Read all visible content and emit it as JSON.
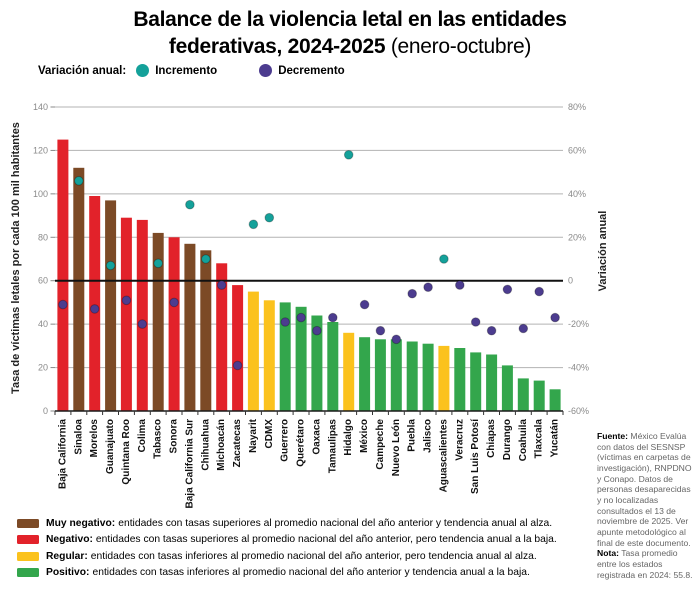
{
  "header": {
    "title_line1": "Balance de la violencia letal en las entidades",
    "title_line2_bold": "federativas, 2024-2025",
    "title_line2_light": " (enero-octubre)"
  },
  "top_legend": {
    "label": "Variación anual:",
    "items": [
      {
        "name": "Incremento",
        "key": "incremento"
      },
      {
        "name": "Decremento",
        "key": "decremento"
      }
    ]
  },
  "chart_data": {
    "type": "bar+scatter",
    "title": "Balance de la violencia letal en las entidades federativas, 2024-2025 (enero-octubre)",
    "left_axis": {
      "label": "Tasa de víctimas letales por cada 100 mil habitantes",
      "ticks": [
        0,
        20,
        40,
        60,
        80,
        100,
        120,
        140
      ],
      "range": [
        0,
        140
      ]
    },
    "right_axis": {
      "label": "Variación anual",
      "ticks": [
        {
          "value": 80,
          "label": "80%"
        },
        {
          "value": 60,
          "label": "60%"
        },
        {
          "value": 40,
          "label": "40%"
        },
        {
          "value": 20,
          "label": "20%"
        },
        {
          "value": 0,
          "label": "0"
        },
        {
          "value": -20,
          "label": "-20%"
        },
        {
          "value": -40,
          "label": "-40%"
        },
        {
          "value": -60,
          "label": "-60%"
        }
      ],
      "range": [
        -60,
        80
      ]
    },
    "zero_reference": {
      "right_value": 0,
      "left_value": 60
    },
    "grid": true,
    "status_colors": {
      "muy_negativo": "#7C4A26",
      "negativo": "#E2222A",
      "regular": "#FBC21D",
      "positivo": "#33A64C"
    },
    "dot_colors": {
      "incremento": "#14A19A",
      "decremento": "#4C3C8F"
    },
    "rows": [
      {
        "state": "Baja California",
        "tasa": 125,
        "status": "negativo",
        "variacion": -11,
        "direccion": "decremento"
      },
      {
        "state": "Sinaloa",
        "tasa": 112,
        "status": "muy_negativo",
        "variacion": 46,
        "direccion": "incremento"
      },
      {
        "state": "Morelos",
        "tasa": 99,
        "status": "negativo",
        "variacion": -13,
        "direccion": "decremento"
      },
      {
        "state": "Guanajuato",
        "tasa": 97,
        "status": "muy_negativo",
        "variacion": 7,
        "direccion": "incremento"
      },
      {
        "state": "Quintana Roo",
        "tasa": 89,
        "status": "negativo",
        "variacion": -9,
        "direccion": "decremento"
      },
      {
        "state": "Colima",
        "tasa": 88,
        "status": "negativo",
        "variacion": -20,
        "direccion": "decremento"
      },
      {
        "state": "Tabasco",
        "tasa": 82,
        "status": "muy_negativo",
        "variacion": 8,
        "direccion": "incremento"
      },
      {
        "state": "Sonora",
        "tasa": 80,
        "status": "negativo",
        "variacion": -10,
        "direccion": "decremento"
      },
      {
        "state": "Baja California Sur",
        "tasa": 77,
        "status": "muy_negativo",
        "variacion": 35,
        "direccion": "incremento"
      },
      {
        "state": "Chihuahua",
        "tasa": 74,
        "status": "muy_negativo",
        "variacion": 10,
        "direccion": "incremento"
      },
      {
        "state": "Michoacán",
        "tasa": 68,
        "status": "negativo",
        "variacion": -2,
        "direccion": "decremento"
      },
      {
        "state": "Zacatecas",
        "tasa": 58,
        "status": "negativo",
        "variacion": -39,
        "direccion": "decremento"
      },
      {
        "state": "Nayarit",
        "tasa": 55,
        "status": "regular",
        "variacion": 26,
        "direccion": "incremento"
      },
      {
        "state": "CDMX",
        "tasa": 51,
        "status": "regular",
        "variacion": 29,
        "direccion": "incremento"
      },
      {
        "state": "Guerrero",
        "tasa": 50,
        "status": "positivo",
        "variacion": -19,
        "direccion": "decremento"
      },
      {
        "state": "Querétaro",
        "tasa": 48,
        "status": "positivo",
        "variacion": -17,
        "direccion": "decremento"
      },
      {
        "state": "Oaxaca",
        "tasa": 44,
        "status": "positivo",
        "variacion": -23,
        "direccion": "decremento"
      },
      {
        "state": "Tamaulipas",
        "tasa": 41,
        "status": "positivo",
        "variacion": -17,
        "direccion": "decremento"
      },
      {
        "state": "Hidalgo",
        "tasa": 36,
        "status": "regular",
        "variacion": 58,
        "direccion": "incremento"
      },
      {
        "state": "México",
        "tasa": 34,
        "status": "positivo",
        "variacion": -11,
        "direccion": "decremento"
      },
      {
        "state": "Campeche",
        "tasa": 33,
        "status": "positivo",
        "variacion": -23,
        "direccion": "decremento"
      },
      {
        "state": "Nuevo León",
        "tasa": 33,
        "status": "positivo",
        "variacion": -27,
        "direccion": "decremento"
      },
      {
        "state": "Puebla",
        "tasa": 32,
        "status": "positivo",
        "variacion": -6,
        "direccion": "decremento"
      },
      {
        "state": "Jalisco",
        "tasa": 31,
        "status": "positivo",
        "variacion": -3,
        "direccion": "decremento"
      },
      {
        "state": "Aguascalientes",
        "tasa": 30,
        "status": "regular",
        "variacion": 10,
        "direccion": "incremento"
      },
      {
        "state": "Veracruz",
        "tasa": 29,
        "status": "positivo",
        "variacion": -2,
        "direccion": "decremento"
      },
      {
        "state": "San Luis Potosí",
        "tasa": 27,
        "status": "positivo",
        "variacion": -19,
        "direccion": "decremento"
      },
      {
        "state": "Chiapas",
        "tasa": 26,
        "status": "positivo",
        "variacion": -23,
        "direccion": "decremento"
      },
      {
        "state": "Durango",
        "tasa": 21,
        "status": "positivo",
        "variacion": -4,
        "direccion": "decremento"
      },
      {
        "state": "Coahuila",
        "tasa": 15,
        "status": "positivo",
        "variacion": -22,
        "direccion": "decremento"
      },
      {
        "state": "Tlaxcala",
        "tasa": 14,
        "status": "positivo",
        "variacion": -5,
        "direccion": "decremento"
      },
      {
        "state": "Yucatán",
        "tasa": 10,
        "status": "positivo",
        "variacion": -17,
        "direccion": "decremento"
      }
    ]
  },
  "bottom_legend": {
    "items": [
      {
        "key": "muy_negativo",
        "label": "Muy negativo:",
        "text": "entidades con tasas superiores al promedio nacional del año anterior y tendencia anual al alza."
      },
      {
        "key": "negativo",
        "label": "Negativo:",
        "text": "entidades con tasas superiores al promedio nacional del año anterior, pero tendencia anual a la baja."
      },
      {
        "key": "regular",
        "label": "Regular:",
        "text": "entidades con tasas inferiores al promedio nacional del año anterior, pero tendencia anual al alza."
      },
      {
        "key": "positivo",
        "label": "Positivo:",
        "text": "entidades con tasas inferiores al promedio nacional del año anterior y tendencia anual a la baja."
      }
    ]
  },
  "note": {
    "fuente_label": "Fuente:",
    "fuente_text": " México Evalúa con datos del SESNSP (víctimas en carpetas de investigación), RNPDNO y Conapo. Datos de personas desaparecidas y no localizadas consultados el 13 de noviembre de 2025. Ver apunte metodológico al final de este documento.",
    "nota_label": "Nota:",
    "nota_text": " Tasa promedio entre los estados registrada en 2024: 55.8."
  }
}
